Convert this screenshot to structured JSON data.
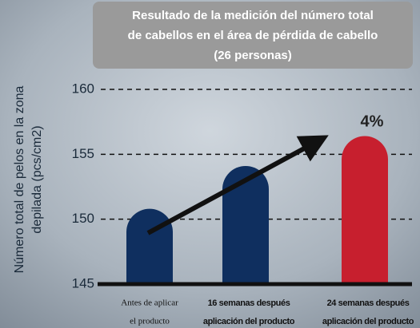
{
  "chart_data": {
    "type": "bar",
    "title": [
      "Resultado de la medición del número total",
      "de cabellos en el área de pérdida de cabello",
      "(26 personas)"
    ],
    "y_label": [
      "Número total de pelos en la zona",
      "depilada (pcs/cm2)"
    ],
    "categories": [
      [
        "Antes de aplicar",
        "el producto"
      ],
      [
        "16 semanas después",
        "aplicación del producto"
      ],
      [
        "24 semanas después",
        "aplicación del producto"
      ]
    ],
    "values": [
      150.8,
      154.1,
      156.4
    ],
    "colors": [
      "#0f2f5f",
      "#0f2f5f",
      "#c71f2e"
    ],
    "ylim": [
      145,
      160
    ],
    "yticks": [
      145,
      150,
      155,
      160
    ],
    "grid": true,
    "annotation": "4%"
  }
}
